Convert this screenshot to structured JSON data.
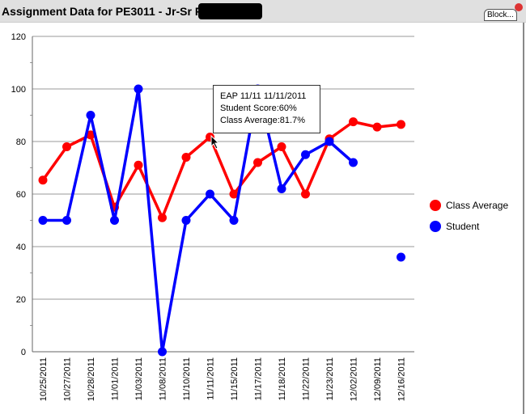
{
  "window": {
    "title": "Assignment Data for PE3011 - Jr-Sr PE 3-4(A)",
    "block_button": "Block..."
  },
  "tooltip": {
    "line1": "EAP 11/11   11/11/2011",
    "line2": "Student Score:60%",
    "line3": "Class Average:81.7%"
  },
  "chart_data": {
    "type": "line",
    "title": "Assignment Data for PE3011 - Jr-Sr PE 3-4(A)",
    "categories": [
      "10/25/2011",
      "10/27/2011",
      "10/28/2011",
      "11/01/2011",
      "11/03/2011",
      "11/08/2011",
      "11/10/2011",
      "11/11/2011",
      "11/15/2011",
      "11/17/2011",
      "11/18/2011",
      "11/22/2011",
      "11/23/2011",
      "12/02/2011",
      "12/09/2011",
      "12/16/2011"
    ],
    "series": [
      {
        "name": "Class Average",
        "color": "#ff0000",
        "values": [
          65.3,
          78,
          82.5,
          55,
          71,
          51,
          74,
          81.7,
          60,
          72,
          78,
          60,
          81,
          87.5,
          85.5,
          86.5
        ]
      },
      {
        "name": "Student",
        "color": "#0000ff",
        "values": [
          50,
          50,
          90,
          50,
          100,
          0,
          50,
          60,
          50,
          100,
          62,
          75,
          80,
          72,
          null,
          36
        ]
      }
    ],
    "ylim": [
      0,
      120
    ],
    "yticks": [
      0,
      20,
      40,
      60,
      80,
      100,
      120
    ],
    "grid": true,
    "legend": "right"
  }
}
